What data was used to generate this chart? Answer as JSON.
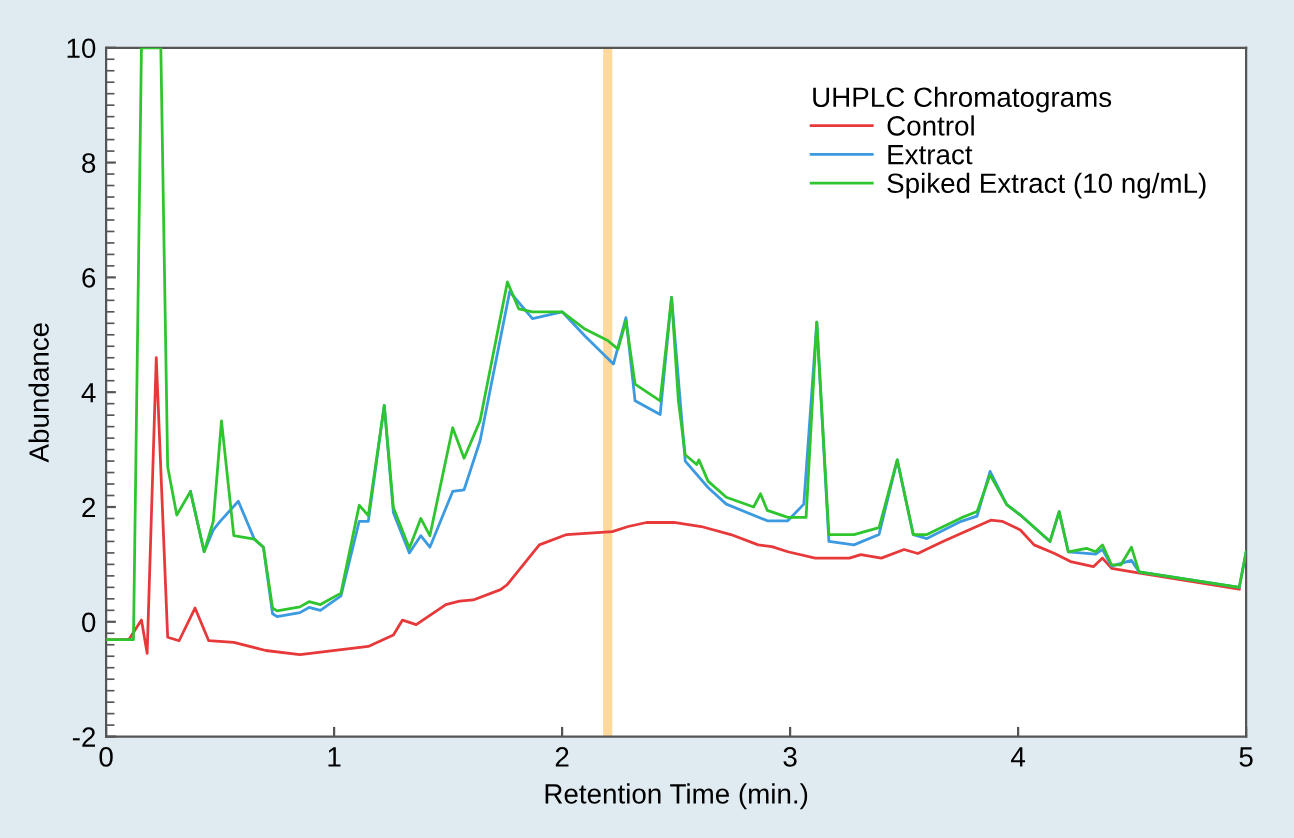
{
  "chart_data": {
    "type": "line",
    "xlabel": "Retention Time (min.)",
    "ylabel": "Abundance",
    "legend_title": "UHPLC Chromatograms",
    "legend": "top right",
    "grid": false,
    "line_style": "solid",
    "xlim": [
      0,
      5
    ],
    "ylim": [
      -2,
      10
    ],
    "xticks": [
      0,
      1,
      2,
      3,
      4,
      5
    ],
    "yticks": [
      -2,
      0,
      2,
      4,
      6,
      8,
      10
    ],
    "bands": [
      {
        "axis": "x",
        "from": 2.18,
        "to": 2.22,
        "color": "#fdd99b"
      }
    ],
    "series": [
      {
        "name": "Control",
        "color": "#e8393a",
        "x": [
          0,
          0.1,
          0.155,
          0.18,
          0.22,
          0.27,
          0.32,
          0.39,
          0.45,
          0.56,
          0.7,
          0.85,
          1.15,
          1.26,
          1.3,
          1.36,
          1.49,
          1.55,
          1.61,
          1.73,
          1.76,
          1.9,
          2.02,
          2.22,
          2.29,
          2.37,
          2.49,
          2.61,
          2.74,
          2.86,
          2.92,
          2.99,
          3.11,
          3.26,
          3.31,
          3.4,
          3.5,
          3.56,
          3.67,
          3.88,
          3.93,
          4.01,
          4.07,
          4.16,
          4.23,
          4.33,
          4.37,
          4.41,
          4.5,
          4.97
        ],
        "values": [
          -0.31,
          -0.31,
          0.03,
          -0.55,
          4.6,
          -0.27,
          -0.33,
          0.24,
          -0.33,
          -0.36,
          -0.5,
          -0.57,
          -0.43,
          -0.23,
          0.03,
          -0.05,
          0.3,
          0.36,
          0.38,
          0.56,
          0.65,
          1.34,
          1.52,
          1.57,
          1.66,
          1.73,
          1.73,
          1.66,
          1.52,
          1.34,
          1.31,
          1.22,
          1.11,
          1.11,
          1.17,
          1.11,
          1.26,
          1.19,
          1.4,
          1.77,
          1.75,
          1.6,
          1.34,
          1.19,
          1.05,
          0.96,
          1.11,
          0.93,
          0.87,
          0.57
        ]
      },
      {
        "name": "Extract",
        "color": "#3b9ae0",
        "x": [
          0.37,
          0.43,
          0.47,
          0.5,
          0.58,
          0.65,
          0.69,
          0.73,
          0.75,
          0.85,
          0.89,
          0.94,
          1.03,
          1.11,
          1.15,
          1.22,
          1.26,
          1.33,
          1.38,
          1.42,
          1.52,
          1.57,
          1.64,
          1.77,
          1.87,
          2.0,
          2.1,
          2.225,
          2.28,
          2.32,
          2.43,
          2.48,
          2.54,
          2.64,
          2.72,
          2.9,
          2.99,
          3.06,
          3.117,
          3.17,
          3.28,
          3.39,
          3.47,
          3.54,
          3.6,
          3.75,
          3.82,
          3.877,
          3.95,
          4.01,
          4.14,
          4.18,
          4.22,
          4.34,
          4.37,
          4.41,
          4.497,
          4.53,
          4.97,
          5.0
        ],
        "values": [
          2.27,
          1.22,
          1.6,
          1.75,
          2.1,
          1.44,
          1.3,
          0.14,
          0.09,
          0.16,
          0.25,
          0.2,
          0.45,
          1.75,
          1.75,
          3.77,
          1.9,
          1.2,
          1.5,
          1.3,
          2.27,
          2.3,
          3.15,
          5.75,
          5.28,
          5.4,
          4.98,
          4.49,
          5.3,
          3.85,
          3.61,
          5.65,
          2.8,
          2.34,
          2.05,
          1.76,
          1.76,
          2.05,
          5.22,
          1.4,
          1.34,
          1.52,
          2.82,
          1.52,
          1.45,
          1.75,
          1.84,
          2.62,
          2.04,
          1.86,
          1.4,
          1.92,
          1.22,
          1.18,
          1.26,
          0.97,
          1.07,
          0.87,
          0.6,
          1.22
        ]
      },
      {
        "name": "Spiked Extract (10 ng/mL)",
        "color": "#2ec52e",
        "x": [
          0,
          0.12,
          0.155,
          0.24,
          0.27,
          0.31,
          0.37,
          0.43,
          0.47,
          0.506,
          0.56,
          0.65,
          0.69,
          0.73,
          0.75,
          0.85,
          0.89,
          0.94,
          1.03,
          1.11,
          1.15,
          1.22,
          1.26,
          1.33,
          1.38,
          1.42,
          1.52,
          1.57,
          1.64,
          1.76,
          1.81,
          1.87,
          2.0,
          2.1,
          2.2,
          2.245,
          2.28,
          2.32,
          2.43,
          2.48,
          2.51,
          2.54,
          2.59,
          2.6,
          2.64,
          2.72,
          2.84,
          2.87,
          2.9,
          2.99,
          3.07,
          3.117,
          3.17,
          3.28,
          3.39,
          3.47,
          3.54,
          3.6,
          3.75,
          3.82,
          3.877,
          3.95,
          4.01,
          4.14,
          4.18,
          4.22,
          4.3,
          4.34,
          4.37,
          4.41,
          4.45,
          4.497,
          4.53,
          4.97,
          5.0
        ],
        "values": [
          -0.31,
          -0.31,
          10,
          10,
          2.7,
          1.86,
          2.27,
          1.22,
          1.75,
          3.5,
          1.5,
          1.44,
          1.3,
          0.24,
          0.19,
          0.26,
          0.35,
          0.3,
          0.5,
          2.03,
          1.85,
          3.77,
          1.99,
          1.28,
          1.8,
          1.5,
          3.38,
          2.85,
          3.5,
          5.92,
          5.45,
          5.4,
          5.4,
          5.1,
          4.9,
          4.75,
          5.24,
          4.14,
          3.85,
          5.65,
          3.85,
          2.91,
          2.74,
          2.82,
          2.45,
          2.17,
          2.0,
          2.23,
          1.94,
          1.82,
          1.82,
          5.22,
          1.52,
          1.52,
          1.64,
          2.82,
          1.52,
          1.52,
          1.81,
          1.92,
          2.56,
          2.04,
          1.86,
          1.4,
          1.92,
          1.22,
          1.28,
          1.22,
          1.34,
          0.99,
          0.99,
          1.3,
          0.87,
          0.6,
          1.22
        ]
      }
    ]
  }
}
